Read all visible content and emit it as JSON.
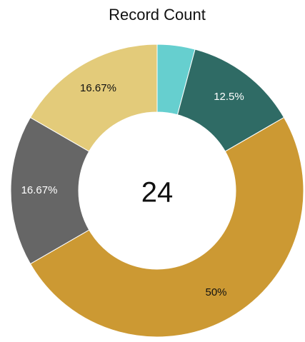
{
  "chart_data": {
    "type": "donut",
    "title": "Record Count",
    "center_label": "24",
    "values": [
      4.17,
      12.5,
      50,
      16.67,
      16.67
    ],
    "value_labels": [
      null,
      "12.5%",
      "50%",
      "16.67%",
      "16.67%"
    ],
    "colors": [
      "#66cfcf",
      "#2f6b65",
      "#cc9933",
      "#666666",
      "#e3cb7a"
    ]
  }
}
